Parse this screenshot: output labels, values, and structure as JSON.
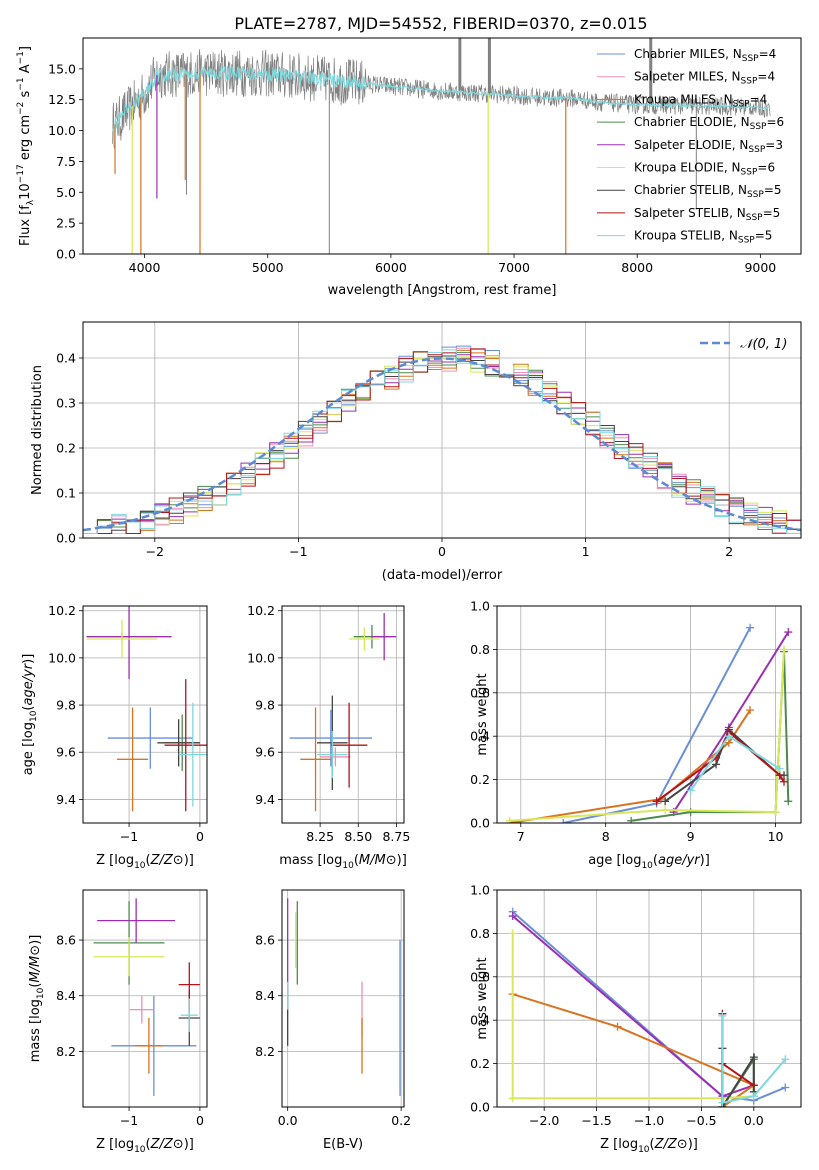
{
  "figure_title": "PLATE=2787, MJD=54552, FIBERID=0370, z=0.015",
  "legend_models": [
    {
      "name": "Chabrier MILES, N",
      "sub": "SSP",
      "tail": "=4",
      "color": "#6a8fd8"
    },
    {
      "name": "Salpeter MILES, N",
      "sub": "SSP",
      "tail": "=4",
      "color": "#ef8fb5"
    },
    {
      "name": "Kroupa MILES, N",
      "sub": "SSP",
      "tail": "=4",
      "color": "#d8731f"
    },
    {
      "name": "Chabrier ELODIE, N",
      "sub": "SSP",
      "tail": "=6",
      "color": "#4d8a4d"
    },
    {
      "name": "Salpeter ELODIE, N",
      "sub": "SSP",
      "tail": "=3",
      "color": "#9b2fb2"
    },
    {
      "name": "Kroupa ELODIE, N",
      "sub": "SSP",
      "tail": "=6",
      "color": "#d8e85a"
    },
    {
      "name": "Chabrier STELIB, N",
      "sub": "SSP",
      "tail": "=5",
      "color": "#444444"
    },
    {
      "name": "Salpeter STELIB, N",
      "sub": "SSP",
      "tail": "=5",
      "color": "#b3141a"
    },
    {
      "name": "Kroupa STELIB, N",
      "sub": "SSP",
      "tail": "=5",
      "color": "#7fd8dd"
    }
  ],
  "chart_data": [
    {
      "id": "spectrum",
      "type": "line",
      "xlabel": "wavelength [Angstrom, rest frame]",
      "ylabel_parts": [
        "Flux [f",
        "λ",
        "10",
        "−17",
        " erg cm",
        "−2",
        " s",
        "−1",
        " A",
        "−1",
        "]"
      ],
      "xlim": [
        3500,
        9330
      ],
      "ylim": [
        0,
        17.5
      ],
      "xticks": [
        4000,
        5000,
        6000,
        7000,
        8000,
        9000
      ],
      "yticks": [
        0.0,
        2.5,
        5.0,
        7.5,
        10.0,
        12.5,
        15.0
      ],
      "yticklabels": [
        "0.0",
        "2.5",
        "5.0",
        "7.5",
        "10.0",
        "12.5",
        "15.0"
      ],
      "data_color": "#808080",
      "model_color": "#7fd8dd",
      "continuum": [
        [
          3760,
          10.5
        ],
        [
          3900,
          12.0
        ],
        [
          4000,
          13.0
        ],
        [
          4100,
          14.5
        ],
        [
          4300,
          14.6
        ],
        [
          4600,
          14.7
        ],
        [
          5000,
          14.6
        ],
        [
          5300,
          14.3
        ],
        [
          5600,
          14.0
        ],
        [
          6000,
          13.6
        ],
        [
          6400,
          13.2
        ],
        [
          6800,
          13.0
        ],
        [
          7200,
          12.7
        ],
        [
          7500,
          12.6
        ],
        [
          7700,
          12.3
        ],
        [
          8000,
          12.1
        ],
        [
          8500,
          12.0
        ],
        [
          9000,
          11.9
        ],
        [
          9060,
          11.8
        ]
      ],
      "data_noise_amp": 1.4,
      "data_range": [
        3740,
        9080
      ],
      "gray_spikes": [
        [
          4340,
          4.8
        ],
        [
          5500,
          0.0
        ],
        [
          6560,
          17.5
        ],
        [
          6800,
          17.5
        ],
        [
          8110,
          17.5
        ],
        [
          8480,
          3.6
        ]
      ],
      "model_dips": [
        {
          "x": 3760,
          "y": 6.5,
          "color": "#d8731f"
        },
        {
          "x": 3900,
          "y": 0.0,
          "color": "#d8e85a"
        },
        {
          "x": 3970,
          "y": 0.0,
          "color": "#d8731f"
        },
        {
          "x": 4450,
          "y": 0.0,
          "color": "#d8731f"
        },
        {
          "x": 6790,
          "y": 0.0,
          "color": "#d8e85a"
        },
        {
          "x": 7420,
          "y": 0.0,
          "color": "#d8731f"
        },
        {
          "x": 4100,
          "y": 4.5,
          "color": "#9b2fb2"
        },
        {
          "x": 4330,
          "y": 6.0,
          "color": "#d8731f"
        }
      ]
    },
    {
      "id": "residual_histogram",
      "type": "step",
      "xlabel": "(data-model)/error",
      "ylabel": "Normed distribution",
      "xlim": [
        -2.5,
        2.5
      ],
      "ylim": [
        0.0,
        0.48
      ],
      "xticks": [
        -2,
        -1,
        0,
        1,
        2
      ],
      "yticks": [
        0.0,
        0.1,
        0.2,
        0.3,
        0.4
      ],
      "yticklabels": [
        "0.0",
        "0.1",
        "0.2",
        "0.3",
        "0.4"
      ],
      "legend": "𝒩(0, 1)",
      "gaussian_color": "#5b8bd4",
      "bin_width": 0.1,
      "bin_start": -2.5
    },
    {
      "id": "age_vs_Z",
      "type": "errorbar",
      "xlabel": "Z [log10(Z/Z⊙)]",
      "ylabel": "age  [log10(age/yr)]",
      "xlim": [
        -1.65,
        0.1
      ],
      "ylim": [
        9.3,
        10.22
      ],
      "xticks": [
        -1,
        0
      ],
      "yticks": [
        9.4,
        9.6,
        9.8,
        10.0,
        10.2
      ],
      "yticklabels": [
        "9.4",
        "9.6",
        "9.8",
        "10.0",
        "10.2"
      ],
      "points": [
        {
          "x": -0.7,
          "y": 9.66,
          "xerr": 0.6,
          "yerr": 0.13,
          "color": "#6a8fd8"
        },
        {
          "x": -1.1,
          "y": 10.09,
          "xerr": 0.5,
          "yerr": 0.02,
          "color": "#ef8fb5"
        },
        {
          "x": -0.95,
          "y": 9.57,
          "xerr": 0.22,
          "yerr": 0.22,
          "color": "#d8731f"
        },
        {
          "x": -0.25,
          "y": 9.64,
          "xerr": 0.25,
          "yerr": 0.12,
          "color": "#4d8a4d"
        },
        {
          "x": -1.0,
          "y": 10.09,
          "xerr": 0.6,
          "yerr": 0.18,
          "color": "#9b2fb2"
        },
        {
          "x": -1.1,
          "y": 10.08,
          "xerr": 0.5,
          "yerr": 0.08,
          "color": "#d8e85a"
        },
        {
          "x": -0.3,
          "y": 9.64,
          "xerr": 0.3,
          "yerr": 0.1,
          "color": "#444444"
        },
        {
          "x": -0.2,
          "y": 9.63,
          "xerr": 0.3,
          "yerr": 0.28,
          "color": "#b3141a"
        },
        {
          "x": -0.1,
          "y": 9.59,
          "xerr": 0.2,
          "yerr": 0.22,
          "color": "#7fd8dd"
        }
      ]
    },
    {
      "id": "age_vs_mass",
      "type": "errorbar",
      "xlabel": "mass [log10(M/M⊙)]",
      "xlim": [
        8.0,
        8.8
      ],
      "ylim": [
        9.3,
        10.22
      ],
      "xticks": [
        8.25,
        8.5,
        8.75
      ],
      "xticklabels": [
        "8.25",
        "8.50",
        "8.75"
      ],
      "yticks": [
        9.4,
        9.6,
        9.8,
        10.0,
        10.2
      ],
      "yticklabels": [
        "9.4",
        "9.6",
        "9.8",
        "10.0",
        "10.2"
      ],
      "points": [
        {
          "x": 8.32,
          "y": 9.66,
          "xerr": 0.27,
          "yerr": 0.12,
          "color": "#6a8fd8"
        },
        {
          "x": 8.35,
          "y": 9.58,
          "xerr": 0.1,
          "yerr": 0.04,
          "color": "#ef8fb5"
        },
        {
          "x": 8.22,
          "y": 9.57,
          "xerr": 0.1,
          "yerr": 0.22,
          "color": "#d8731f"
        },
        {
          "x": 8.59,
          "y": 10.09,
          "xerr": 0.12,
          "yerr": 0.05,
          "color": "#4d8a4d"
        },
        {
          "x": 8.67,
          "y": 10.09,
          "xerr": 0.08,
          "yerr": 0.1,
          "color": "#9b2fb2"
        },
        {
          "x": 8.54,
          "y": 10.08,
          "xerr": 0.1,
          "yerr": 0.05,
          "color": "#d8e85a"
        },
        {
          "x": 8.33,
          "y": 9.64,
          "xerr": 0.1,
          "yerr": 0.2,
          "color": "#444444"
        },
        {
          "x": 8.44,
          "y": 9.63,
          "xerr": 0.12,
          "yerr": 0.18,
          "color": "#b3141a"
        },
        {
          "x": 8.33,
          "y": 9.59,
          "xerr": 0.1,
          "yerr": 0.1,
          "color": "#7fd8dd"
        }
      ]
    },
    {
      "id": "weight_vs_age",
      "type": "line",
      "xlabel": "age  [log10(age/yr)]",
      "ylabel": "mass weight",
      "xlim": [
        6.72,
        10.3
      ],
      "ylim": [
        0,
        1.0
      ],
      "xticks": [
        7,
        8,
        9,
        10
      ],
      "yticks": [
        0.0,
        0.2,
        0.4,
        0.6,
        0.8,
        1.0
      ],
      "yticklabels": [
        "0.0",
        "0.2",
        "0.4",
        "0.6",
        "0.8",
        "1.0"
      ],
      "series": [
        {
          "color": "#6a8fd8",
          "points": [
            [
              7.5,
              0.0
            ],
            [
              8.6,
              0.09
            ],
            [
              9.7,
              0.9
            ]
          ]
        },
        {
          "color": "#9b2fb2",
          "points": [
            [
              8.8,
              0.05
            ],
            [
              9.45,
              0.44
            ],
            [
              10.15,
              0.88
            ]
          ]
        },
        {
          "color": "#d8731f",
          "points": [
            [
              6.87,
              0.0
            ],
            [
              8.65,
              0.11
            ],
            [
              9.45,
              0.37
            ],
            [
              9.7,
              0.52
            ]
          ]
        },
        {
          "color": "#4d8a4d",
          "points": [
            [
              8.3,
              0.01
            ],
            [
              9.0,
              0.05
            ],
            [
              10.0,
              0.05
            ],
            [
              10.1,
              0.79
            ],
            [
              10.15,
              0.1
            ]
          ]
        },
        {
          "color": "#d8e85a",
          "points": [
            [
              6.87,
              0.01
            ],
            [
              8.7,
              0.06
            ],
            [
              10.0,
              0.05
            ],
            [
              10.1,
              0.8
            ]
          ]
        },
        {
          "color": "#444444",
          "points": [
            [
              8.7,
              0.1
            ],
            [
              9.3,
              0.27
            ],
            [
              9.45,
              0.43
            ],
            [
              10.05,
              0.22
            ],
            [
              10.1,
              0.22
            ]
          ]
        },
        {
          "color": "#b3141a",
          "points": [
            [
              8.6,
              0.1
            ],
            [
              9.3,
              0.3
            ],
            [
              9.45,
              0.42
            ],
            [
              10.05,
              0.22
            ],
            [
              10.1,
              0.19
            ]
          ]
        },
        {
          "color": "#7fd8dd",
          "points": [
            [
              9.0,
              0.15
            ],
            [
              9.45,
              0.4
            ],
            [
              10.05,
              0.25
            ]
          ]
        }
      ]
    },
    {
      "id": "mass_vs_Z",
      "type": "errorbar",
      "xlabel": "Z [log10(Z/Z⊙)]",
      "ylabel": "mass [log10(M/M⊙)]",
      "xlim": [
        -1.65,
        0.1
      ],
      "ylim": [
        8.0,
        8.78
      ],
      "xticks": [
        -1,
        0
      ],
      "yticks": [
        8.2,
        8.4,
        8.6
      ],
      "yticklabels": [
        "8.2",
        "8.4",
        "8.6"
      ],
      "points": [
        {
          "x": -0.65,
          "y": 8.22,
          "xerr": 0.6,
          "yerr": 0.18,
          "color": "#6a8fd8"
        },
        {
          "x": -0.82,
          "y": 8.35,
          "xerr": 0.17,
          "yerr": 0.05,
          "color": "#ef8fb5"
        },
        {
          "x": -0.72,
          "y": 8.22,
          "xerr": 0.2,
          "yerr": 0.1,
          "color": "#d8731f"
        },
        {
          "x": -1.0,
          "y": 8.59,
          "xerr": 0.5,
          "yerr": 0.15,
          "color": "#4d8a4d"
        },
        {
          "x": -0.9,
          "y": 8.67,
          "xerr": 0.55,
          "yerr": 0.08,
          "color": "#9b2fb2"
        },
        {
          "x": -1.0,
          "y": 8.54,
          "xerr": 0.5,
          "yerr": 0.07,
          "color": "#d8e85a"
        },
        {
          "x": -0.15,
          "y": 8.32,
          "xerr": 0.15,
          "yerr": 0.1,
          "color": "#444444"
        },
        {
          "x": -0.15,
          "y": 8.44,
          "xerr": 0.15,
          "yerr": 0.08,
          "color": "#b3141a"
        },
        {
          "x": -0.15,
          "y": 8.33,
          "xerr": 0.12,
          "yerr": 0.06,
          "color": "#7fd8dd"
        }
      ]
    },
    {
      "id": "mass_vs_ebv",
      "type": "errorbar",
      "xlabel": "E(B-V)",
      "xlim": [
        -0.01,
        0.205
      ],
      "ylim": [
        8.0,
        8.78
      ],
      "xticks": [
        0.0,
        0.2
      ],
      "xticklabels": [
        "0.0",
        "0.2"
      ],
      "yticks": [
        8.2,
        8.4,
        8.6
      ],
      "yticklabels": [
        "8.2",
        "8.4",
        "8.6"
      ],
      "points": [
        {
          "x": 0.198,
          "y": 8.32,
          "xerr": 0,
          "yerr": 0.28,
          "color": "#6a8fd8"
        },
        {
          "x": 0.131,
          "y": 8.35,
          "xerr": 0,
          "yerr": 0.1,
          "color": "#ef8fb5"
        },
        {
          "x": 0.131,
          "y": 8.22,
          "xerr": 0,
          "yerr": 0.1,
          "color": "#d8731f"
        },
        {
          "x": 0.017,
          "y": 8.59,
          "xerr": 0,
          "yerr": 0.15,
          "color": "#4d8a4d"
        },
        {
          "x": 0.0,
          "y": 8.58,
          "xerr": 0,
          "yerr": 0.17,
          "color": "#9b2fb2"
        },
        {
          "x": 0.014,
          "y": 8.6,
          "xerr": 0,
          "yerr": 0.1,
          "color": "#d8e85a"
        },
        {
          "x": 0.0,
          "y": 8.32,
          "xerr": 0,
          "yerr": 0.1,
          "color": "#444444"
        },
        {
          "x": 0.0,
          "y": 8.4,
          "xerr": 0,
          "yerr": 0.05,
          "color": "#7fd8dd"
        }
      ]
    },
    {
      "id": "weight_vs_Z",
      "type": "line",
      "xlabel": "Z [log10(Z/Z⊙)]",
      "ylabel": "mass weight",
      "xlim": [
        -2.45,
        0.45
      ],
      "ylim": [
        0,
        1.0
      ],
      "xticks": [
        -2.0,
        -1.5,
        -1.0,
        -0.5,
        0.0
      ],
      "xticklabels": [
        "−2.0",
        "−1.5",
        "−1.0",
        "−0.5",
        "0.0"
      ],
      "yticks": [
        0.0,
        0.2,
        0.4,
        0.6,
        0.8,
        1.0
      ],
      "yticklabels": [
        "0.0",
        "0.2",
        "0.4",
        "0.6",
        "0.8",
        "1.0"
      ],
      "series": [
        {
          "color": "#6a8fd8",
          "points": [
            [
              -2.3,
              0.9
            ],
            [
              -0.3,
              0.05
            ],
            [
              0.0,
              0.03
            ],
            [
              0.3,
              0.09
            ]
          ]
        },
        {
          "color": "#9b2fb2",
          "points": [
            [
              -2.3,
              0.88
            ],
            [
              -0.3,
              0.05
            ],
            [
              0.0,
              0.1
            ]
          ]
        },
        {
          "color": "#d8731f",
          "points": [
            [
              -2.3,
              0.52
            ],
            [
              -1.3,
              0.37
            ],
            [
              0.0,
              0.1
            ],
            [
              -0.3,
              0.0
            ]
          ]
        },
        {
          "color": "#4d8a4d",
          "points": [
            [
              -0.3,
              0.27
            ],
            [
              -0.3,
              0.0
            ],
            [
              0.0,
              0.22
            ],
            [
              0.0,
              0.05
            ]
          ]
        },
        {
          "color": "#d8e85a",
          "points": [
            [
              -2.3,
              0.8
            ],
            [
              -2.3,
              0.04
            ],
            [
              -0.3,
              0.04
            ],
            [
              0.0,
              0.05
            ]
          ]
        },
        {
          "color": "#444444",
          "points": [
            [
              -0.3,
              0.27
            ],
            [
              -0.3,
              0.0
            ],
            [
              0.0,
              0.23
            ],
            [
              0.0,
              0.07
            ]
          ]
        },
        {
          "color": "#b3141a",
          "points": [
            [
              -0.3,
              0.43
            ],
            [
              -0.3,
              0.0
            ],
            [
              -0.3,
              0.2
            ],
            [
              0.0,
              0.1
            ]
          ]
        },
        {
          "color": "#7fd8dd",
          "points": [
            [
              -0.3,
              0.42
            ],
            [
              -0.3,
              0.02
            ],
            [
              0.0,
              0.05
            ],
            [
              0.3,
              0.22
            ]
          ]
        }
      ]
    }
  ]
}
